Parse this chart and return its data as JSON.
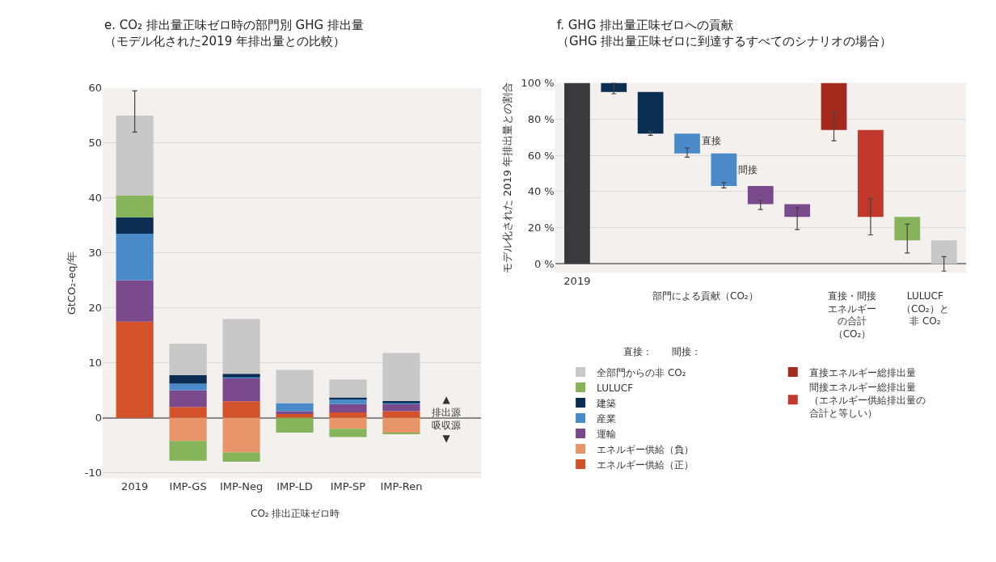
{
  "chart_data": [
    {
      "type": "bar",
      "stacked": true,
      "title": "e. CO₂ 排出量正味ゼロ時の部門別 GHG 排出量（モデル化された2019 年排出量との比較）",
      "ylabel": "GtCO₂-eq/年",
      "categories": [
        "2019",
        "IMP-GS",
        "IMP-Neg",
        "IMP-LD",
        "IMP-SP",
        "IMP-Ren"
      ],
      "series": [
        {
          "name": "エネルギー供給（正）",
          "color": "#d4522a",
          "values": [
            17.5,
            2,
            3,
            0.7,
            1,
            1.2
          ]
        },
        {
          "name": "エネルギー供給（負）",
          "color": "#e8956a",
          "values": [
            null,
            -4.2,
            -6.3,
            null,
            -2,
            -2.7
          ]
        },
        {
          "name": "運輸",
          "color": "#7b4a8c",
          "values": [
            7.5,
            3,
            4.2,
            0.5,
            1.5,
            1.3
          ]
        },
        {
          "name": "産業",
          "color": "#4a8ac8",
          "values": [
            8.5,
            1.2,
            0.2,
            1.5,
            1.0,
            0.2
          ]
        },
        {
          "name": "建築",
          "color": "#0c2d52",
          "values": [
            3,
            1.6,
            0.6,
            null,
            0.2,
            0.4
          ]
        },
        {
          "name": "LULUCF",
          "color": "#86b45a",
          "values": [
            4,
            -3.6,
            -1.7,
            -2.7,
            -1.5,
            -0.3
          ]
        },
        {
          "name": "全部門からの非 CO₂",
          "color": "#c8c8c8",
          "values": [
            14.5,
            5.7,
            10,
            6,
            3.3,
            8.7
          ],
          "errors": [
            [
              52,
              59.5
            ],
            null,
            null,
            null,
            null,
            null
          ]
        }
      ],
      "ylim": [
        -11,
        60
      ],
      "yticks": [
        -10,
        0,
        10,
        20,
        30,
        40,
        50,
        60
      ],
      "grid": "y",
      "legend": "bottom right",
      "annotations": [
        "CO₂ 排出正味ゼロ時",
        "▲\n排出源",
        "吸収源\n▼"
      ]
    },
    {
      "type": "bar",
      "title": "f. GHG 排出量正味ゼロへの貢献（GHG 排出量正味ゼロに到達するすべてのシナリオの場合）",
      "ylabel": "モデル化された 2019 年排出量との割合",
      "categories": [
        "2019",
        null,
        null,
        null,
        null,
        null,
        null,
        null,
        null,
        null,
        null
      ],
      "series": [
        {
          "colors": [
            "#3a3a3c",
            "#0c2d52",
            "#0c2d52",
            "#4a8ac8",
            "#4a8ac8",
            "#7b4a8c",
            "#7b4a8c",
            null,
            null,
            "#86b45a",
            "#c8c8c8"
          ],
          "values": [
            100,
            -5,
            -23,
            -11,
            -18,
            -10,
            -7,
            null,
            null,
            -13,
            -13
          ],
          "base": [
            0,
            100,
            95,
            72,
            61,
            43,
            33,
            null,
            null,
            26,
            13
          ],
          "errors": [
            null,
            [
              94,
              100
            ],
            [
              71,
              73
            ],
            [
              59,
              64
            ],
            [
              42,
              45
            ],
            [
              30,
              35
            ],
            [
              19,
              31
            ],
            null,
            null,
            [
              6,
              22
            ],
            [
              -4,
              4
            ]
          ]
        },
        {
          "name": "直接エネルギー総排出量",
          "color": "#a52a1e",
          "values": [
            null,
            null,
            null,
            null,
            null,
            null,
            null,
            -26,
            null,
            null,
            null
          ],
          "base": [
            null,
            null,
            null,
            null,
            null,
            null,
            null,
            100,
            null,
            null,
            null
          ],
          "errors": [
            null,
            null,
            null,
            null,
            null,
            null,
            null,
            [
              68,
              84
            ],
            null,
            null,
            null
          ]
        },
        {
          "name": "間接エネルギー総排出量（エネルギー供給排出量の合計と等しい）",
          "color": "#c0392b",
          "values": [
            null,
            null,
            null,
            null,
            null,
            null,
            null,
            null,
            -48,
            null,
            null
          ],
          "base": [
            null,
            null,
            null,
            null,
            null,
            null,
            null,
            null,
            74,
            null,
            null
          ],
          "errors": [
            null,
            null,
            null,
            null,
            null,
            null,
            null,
            null,
            [
              16,
              36
            ],
            null,
            null
          ]
        }
      ],
      "ylim": [
        -5,
        100
      ],
      "yticks": [
        {
          "value": 0,
          "label": "0 %"
        },
        {
          "value": 20,
          "label": "20 %"
        },
        {
          "value": 40,
          "label": "40 %"
        },
        {
          "value": 60,
          "label": "60 %"
        },
        {
          "value": 80,
          "label": "80 %"
        },
        {
          "value": 100,
          "label": "100 %"
        }
      ],
      "grid": "y",
      "legend": "bottom right",
      "annotations": [
        "部門による貢献（CO₂）",
        "直接・間接エネルギーの合計（CO₂）",
        "LULUCF（CO₂）と非 CO₂",
        "直接",
        "間接",
        "直接：",
        "間接："
      ]
    }
  ]
}
